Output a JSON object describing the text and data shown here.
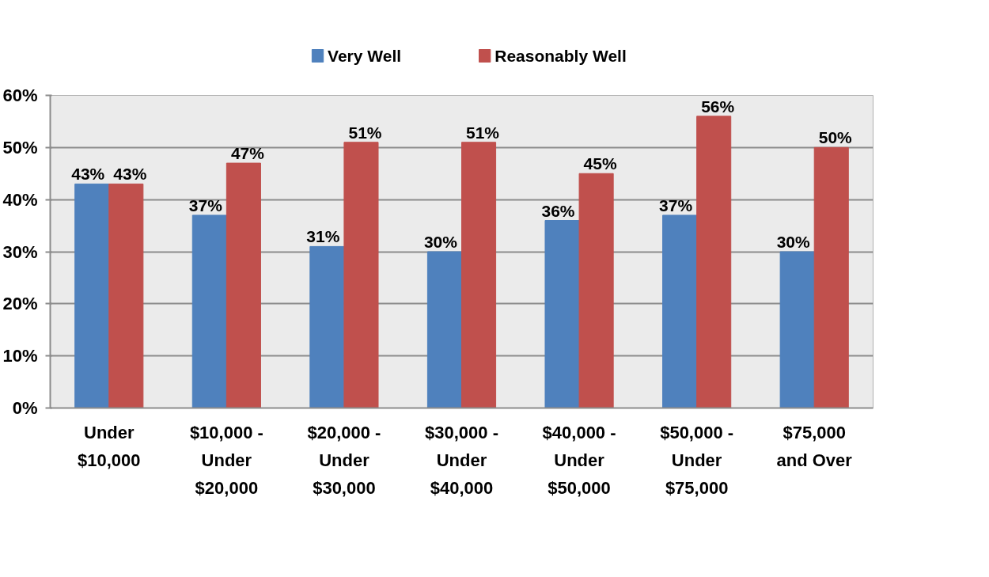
{
  "chart_data": {
    "type": "bar",
    "categories": [
      "Under\n$10,000",
      "$10,000 -\nUnder\n$20,000",
      "$20,000 -\nUnder\n$30,000",
      "$30,000 -\nUnder\n$40,000",
      "$40,000 -\nUnder\n$50,000",
      "$50,000 -\nUnder\n$75,000",
      "$75,000\nand Over"
    ],
    "series": [
      {
        "name": "Very Well",
        "color": "#4f81bd",
        "values": [
          43,
          37,
          31,
          30,
          36,
          37,
          30
        ],
        "value_labels": [
          "43%",
          "37%",
          "31%",
          "30%",
          "36%",
          "37%",
          "30%"
        ]
      },
      {
        "name": "Reasonably Well",
        "color": "#c0504d",
        "values": [
          43,
          47,
          51,
          51,
          45,
          56,
          50
        ],
        "value_labels": [
          "43%",
          "47%",
          "51%",
          "51%",
          "45%",
          "56%",
          "50%"
        ]
      }
    ],
    "ylim": [
      0,
      60
    ],
    "yticks": [
      {
        "value": 0,
        "label": "0%"
      },
      {
        "value": 10,
        "label": "10%"
      },
      {
        "value": 20,
        "label": "20%"
      },
      {
        "value": 30,
        "label": "30%"
      },
      {
        "value": 40,
        "label": "40%"
      },
      {
        "value": 50,
        "label": "50%"
      },
      {
        "value": 60,
        "label": "60%"
      }
    ],
    "grid": "y",
    "legend": "top"
  }
}
